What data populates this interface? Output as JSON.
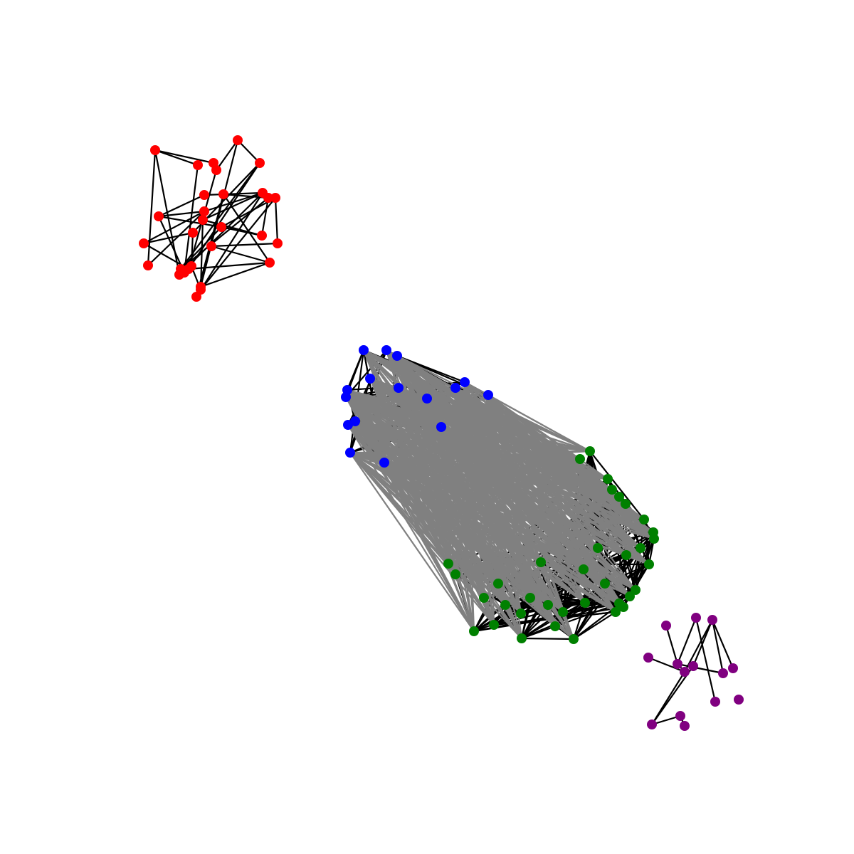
{
  "graph": {
    "communities": [
      {
        "id": "red",
        "color": "#ff0000",
        "node_count": 30
      },
      {
        "id": "blue",
        "color": "#0000ff",
        "node_count": 16
      },
      {
        "id": "green",
        "color": "#008000",
        "node_count": 36
      },
      {
        "id": "purple",
        "color": "#800080",
        "node_count": 14
      }
    ],
    "edge_colors": {
      "intra": "#000000",
      "inter": "#808080"
    },
    "background": "#ffffff"
  }
}
